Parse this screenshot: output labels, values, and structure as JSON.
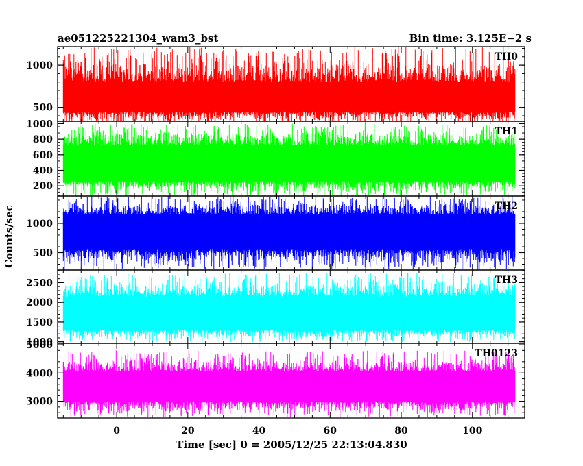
{
  "header": {
    "title": "ae051225221304_wam3_bst",
    "bin_time": "Bin time: 3.125E−2 s"
  },
  "chart_data": {
    "type": "line",
    "xlabel": "Time [sec] 0 = 2005/12/25 22:13:04.830",
    "ylabel": "Counts/sec",
    "x_range": [
      -16.6,
      114.7
    ],
    "data_x_range": [
      -15.0,
      112.0
    ],
    "x_ticks": [
      0,
      20,
      40,
      60,
      80,
      100
    ],
    "x_tick_labels": [
      "0",
      "20",
      "40",
      "60",
      "80",
      "100"
    ],
    "grid": false,
    "panels": [
      {
        "name": "TH0",
        "color": "#ff0000",
        "ylim": [
          335,
          1220
        ],
        "y_ticks": [
          500,
          1000
        ],
        "y_tick_labels": [
          "500",
          "1000"
        ],
        "band": [
          450,
          800
        ],
        "spike_range": [
          290,
          1220
        ]
      },
      {
        "name": "TH1",
        "color": "#00ff00",
        "ylim": [
          70,
          1030
        ],
        "y_ticks": [
          200,
          400,
          600,
          800,
          1000
        ],
        "y_tick_labels": [
          "200",
          "400",
          "600",
          "800",
          "1000"
        ],
        "band": [
          260,
          720
        ],
        "spike_range": [
          60,
          1000
        ]
      },
      {
        "name": "TH2",
        "color": "#0000ff",
        "ylim": [
          200,
          1470
        ],
        "y_ticks": [
          500,
          1000
        ],
        "y_tick_labels": [
          "500",
          "1000"
        ],
        "band": [
          550,
          1150
        ],
        "spike_range": [
          200,
          1470
        ]
      },
      {
        "name": "TH3",
        "color": "#00ffff",
        "ylim": [
          960,
          2820
        ],
        "y_ticks": [
          1000,
          1500,
          2000,
          2500
        ],
        "y_tick_labels": [
          "1000",
          "1500",
          "2000",
          "2500"
        ],
        "band": [
          1300,
          2150
        ],
        "spike_range": [
          980,
          2750
        ]
      },
      {
        "name": "TH0123",
        "color": "#ff00ff",
        "ylim": [
          2410,
          5050
        ],
        "y_ticks": [
          3000,
          4000,
          5000
        ],
        "y_tick_labels": [
          "3000",
          "4000",
          "5000"
        ],
        "band": [
          3000,
          4050
        ],
        "spike_range": [
          2450,
          4800
        ]
      }
    ]
  }
}
